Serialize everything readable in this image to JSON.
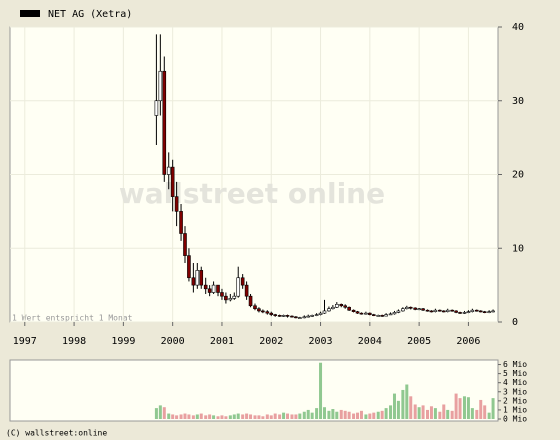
{
  "chart_data": [
    {
      "type": "candlestick",
      "watermark": "wallstreet online",
      "note": "1 Wert entspricht 1 Monat",
      "xlim": [
        1997.2,
        2007.1
      ],
      "xticks": [
        {
          "value": 1997.5,
          "label": "1997"
        },
        {
          "value": 1998.5,
          "label": "1998"
        },
        {
          "value": 1999.5,
          "label": "1999"
        },
        {
          "value": 2000.5,
          "label": "2000"
        },
        {
          "value": 2001.5,
          "label": "2001"
        },
        {
          "value": 2002.5,
          "label": "2002"
        },
        {
          "value": 2003.5,
          "label": "2003"
        },
        {
          "value": 2004.5,
          "label": "2004"
        },
        {
          "value": 2005.5,
          "label": "2005"
        },
        {
          "value": 2006.5,
          "label": "2006"
        }
      ],
      "ylim": [
        0,
        40
      ],
      "yticks": [
        0,
        10,
        20,
        30,
        40
      ],
      "grid": true,
      "x": [
        2000.17,
        2000.25,
        2000.33,
        2000.42,
        2000.5,
        2000.58,
        2000.67,
        2000.75,
        2000.83,
        2000.92,
        2001.0,
        2001.08,
        2001.17,
        2001.25,
        2001.33,
        2001.42,
        2001.5,
        2001.58,
        2001.67,
        2001.75,
        2001.83,
        2001.92,
        2002.0,
        2002.08,
        2002.17,
        2002.25,
        2002.33,
        2002.42,
        2002.5,
        2002.58,
        2002.67,
        2002.75,
        2002.83,
        2002.92,
        2003.0,
        2003.08,
        2003.17,
        2003.25,
        2003.33,
        2003.42,
        2003.5,
        2003.58,
        2003.67,
        2003.75,
        2003.83,
        2003.92,
        2004.0,
        2004.08,
        2004.17,
        2004.25,
        2004.33,
        2004.42,
        2004.5,
        2004.58,
        2004.67,
        2004.75,
        2004.83,
        2004.92,
        2005.0,
        2005.08,
        2005.17,
        2005.25,
        2005.33,
        2005.42,
        2005.5,
        2005.58,
        2005.67,
        2005.75,
        2005.83,
        2005.92,
        2006.0,
        2006.08,
        2006.17,
        2006.25,
        2006.33,
        2006.42,
        2006.5,
        2006.58,
        2006.67,
        2006.75,
        2006.83,
        2006.92,
        2007.0
      ],
      "series": [
        {
          "name": "NET AG (Xetra)",
          "color": "#000000",
          "up_color": "#ffffff",
          "down_color": "#800000",
          "open": [
            28,
            30,
            34,
            20,
            21,
            17,
            15,
            12,
            9,
            6,
            5,
            7,
            5,
            4.5,
            4,
            5,
            4,
            3.5,
            3,
            3.2,
            3.5,
            6,
            5,
            3.5,
            2.2,
            1.8,
            1.5,
            1.4,
            1.2,
            1.0,
            0.9,
            0.8,
            0.9,
            0.8,
            0.7,
            0.6,
            0.6,
            0.7,
            0.8,
            0.9,
            1.0,
            1.2,
            1.5,
            1.8,
            2.0,
            2.4,
            2.2,
            2.0,
            1.6,
            1.4,
            1.2,
            1.1,
            1.2,
            1.0,
            0.9,
            0.9,
            0.8,
            1.0,
            1.1,
            1.3,
            1.5,
            1.8,
            2.0,
            1.9,
            1.7,
            1.8,
            1.6,
            1.5,
            1.4,
            1.6,
            1.5,
            1.4,
            1.6,
            1.5,
            1.3,
            1.2,
            1.3,
            1.4,
            1.6,
            1.5,
            1.4,
            1.3,
            1.4
          ],
          "high": [
            39,
            39,
            36,
            23,
            22,
            19,
            16,
            13,
            10,
            8,
            8,
            7.5,
            6,
            5,
            5.5,
            5,
            4.5,
            4,
            3.8,
            4,
            7.5,
            6.5,
            5.5,
            3.8,
            2.5,
            2,
            1.7,
            1.6,
            1.4,
            1.1,
            1,
            1,
            1,
            0.9,
            0.8,
            0.7,
            0.9,
            1,
            1,
            1.2,
            1.4,
            3,
            2.1,
            2.3,
            2.7,
            2.5,
            2.4,
            2.1,
            1.7,
            1.5,
            1.3,
            1.4,
            1.3,
            1.1,
            1,
            1,
            1.2,
            1.3,
            1.5,
            1.7,
            2,
            2.2,
            2.1,
            2,
            1.9,
            1.9,
            1.7,
            1.6,
            1.8,
            1.7,
            1.6,
            1.8,
            1.7,
            1.6,
            1.4,
            1.5,
            1.6,
            1.8,
            1.7,
            1.6,
            1.5,
            1.6,
            1.7
          ],
          "low": [
            24,
            28,
            19,
            18,
            15,
            13,
            11,
            8,
            5.5,
            4,
            4.5,
            4.5,
            3.8,
            3.5,
            3.8,
            3.5,
            3,
            2.5,
            2.8,
            3,
            3.3,
            4.5,
            3,
            2,
            1.6,
            1.3,
            1.2,
            1,
            0.8,
            0.7,
            0.7,
            0.7,
            0.6,
            0.6,
            0.5,
            0.5,
            0.5,
            0.6,
            0.7,
            0.8,
            0.9,
            1.1,
            1.4,
            1.7,
            1.9,
            2,
            1.8,
            1.5,
            1.3,
            1.1,
            1,
            1,
            0.9,
            0.8,
            0.8,
            0.7,
            0.8,
            1,
            1,
            1.2,
            1.4,
            1.7,
            1.7,
            1.6,
            1.6,
            1.5,
            1.4,
            1.3,
            1.3,
            1.4,
            1.3,
            1.3,
            1.4,
            1.2,
            1.1,
            1.1,
            1.2,
            1.3,
            1.4,
            1.3,
            1.2,
            1.2,
            1.3
          ],
          "close": [
            30,
            34,
            20,
            21,
            17,
            15,
            12,
            9,
            6,
            5,
            7,
            5,
            4.5,
            4,
            5,
            4,
            3.5,
            3,
            3.2,
            3.5,
            6,
            5,
            3.5,
            2.2,
            1.8,
            1.5,
            1.4,
            1.2,
            1.0,
            0.9,
            0.8,
            0.9,
            0.8,
            0.7,
            0.6,
            0.6,
            0.7,
            0.8,
            0.9,
            1.0,
            1.2,
            1.5,
            1.8,
            2.0,
            2.4,
            2.2,
            2.0,
            1.6,
            1.4,
            1.2,
            1.1,
            1.2,
            1.0,
            0.9,
            0.9,
            0.8,
            1.0,
            1.1,
            1.3,
            1.5,
            1.8,
            2.0,
            1.9,
            1.7,
            1.8,
            1.6,
            1.5,
            1.4,
            1.6,
            1.5,
            1.4,
            1.6,
            1.5,
            1.3,
            1.2,
            1.3,
            1.4,
            1.6,
            1.5,
            1.4,
            1.3,
            1.4,
            1.5
          ]
        }
      ]
    },
    {
      "type": "bar",
      "up_color": "#90c890",
      "down_color": "#e8a0a0",
      "ylim": [
        0,
        6.5
      ],
      "yticks": [
        {
          "value": 0,
          "label": "0 Mio"
        },
        {
          "value": 1,
          "label": "1 Mio"
        },
        {
          "value": 2,
          "label": "2 Mio"
        },
        {
          "value": 3,
          "label": "3 Mio"
        },
        {
          "value": 4,
          "label": "4 Mio"
        },
        {
          "value": 5,
          "label": "5 Mio"
        },
        {
          "value": 6,
          "label": "6 Mio"
        }
      ],
      "values": [
        1.2,
        1.5,
        1.3,
        0.6,
        0.5,
        0.4,
        0.5,
        0.6,
        0.5,
        0.4,
        0.5,
        0.6,
        0.4,
        0.5,
        0.4,
        0.3,
        0.4,
        0.3,
        0.4,
        0.5,
        0.6,
        0.5,
        0.6,
        0.5,
        0.4,
        0.4,
        0.3,
        0.5,
        0.4,
        0.6,
        0.5,
        0.7,
        0.6,
        0.5,
        0.5,
        0.6,
        0.8,
        1.0,
        0.7,
        1.2,
        6.2,
        1.3,
        0.9,
        1.1,
        0.8,
        1.0,
        0.9,
        0.8,
        0.6,
        0.7,
        0.9,
        0.5,
        0.6,
        0.7,
        0.8,
        0.9,
        1.2,
        1.5,
        2.8,
        2.0,
        3.2,
        3.8,
        2.5,
        1.6,
        1.3,
        1.5,
        1.0,
        1.4,
        1.2,
        0.8,
        1.6,
        1.0,
        0.9,
        2.8,
        2.3,
        2.5,
        2.4,
        1.2,
        1.0,
        2.1,
        1.5,
        0.7,
        2.3
      ]
    }
  ],
  "footer": "(C) wallstreet:online"
}
